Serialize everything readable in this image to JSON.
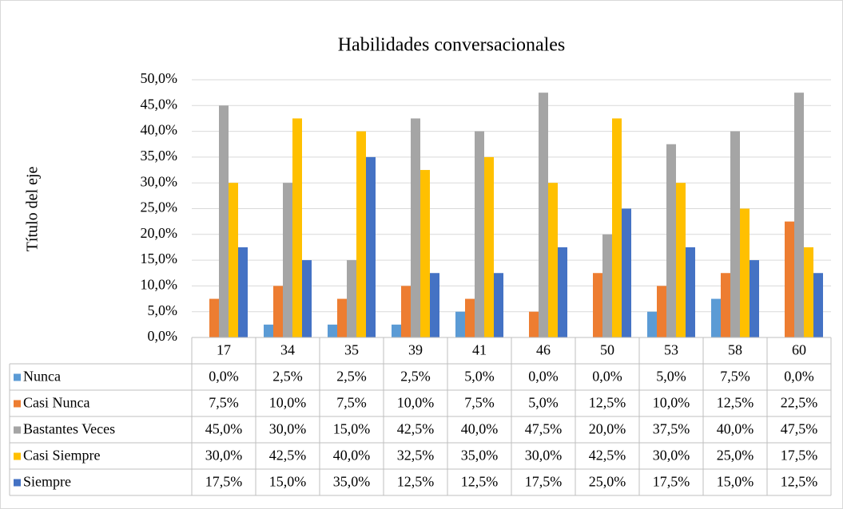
{
  "chart_data": {
    "type": "bar",
    "title": "Habilidades conversacionales",
    "y_label": "Título del eje",
    "categories": [
      "17",
      "34",
      "35",
      "39",
      "41",
      "46",
      "50",
      "53",
      "58",
      "60"
    ],
    "ylim": [
      0,
      50
    ],
    "yticks": [
      {
        "value": 0,
        "label": "0,0%"
      },
      {
        "value": 5,
        "label": "5,0%"
      },
      {
        "value": 10,
        "label": "10,0%"
      },
      {
        "value": 15,
        "label": "15,0%"
      },
      {
        "value": 20,
        "label": "20,0%"
      },
      {
        "value": 25,
        "label": "25,0%"
      },
      {
        "value": 30,
        "label": "30,0%"
      },
      {
        "value": 35,
        "label": "35,0%"
      },
      {
        "value": 40,
        "label": "40,0%"
      },
      {
        "value": 45,
        "label": "45,0%"
      },
      {
        "value": 50,
        "label": "50,0%"
      }
    ],
    "grid": true,
    "series": [
      {
        "name": "Nunca",
        "color": "#5b9bd5",
        "values": [
          0,
          2.5,
          2.5,
          2.5,
          5,
          0,
          0,
          5,
          7.5,
          0
        ],
        "value_labels": [
          "0,0%",
          "2,5%",
          "2,5%",
          "2,5%",
          "5,0%",
          "0,0%",
          "0,0%",
          "5,0%",
          "7,5%",
          "0,0%"
        ]
      },
      {
        "name": "Casi Nunca",
        "color": "#ed7d31",
        "values": [
          7.5,
          10,
          7.5,
          10,
          7.5,
          5,
          12.5,
          10,
          12.5,
          22.5
        ],
        "value_labels": [
          "7,5%",
          "10,0%",
          "7,5%",
          "10,0%",
          "7,5%",
          "5,0%",
          "12,5%",
          "10,0%",
          "12,5%",
          "22,5%"
        ]
      },
      {
        "name": "Bastantes Veces",
        "color": "#a5a5a5",
        "values": [
          45,
          30,
          15,
          42.5,
          40,
          47.5,
          20,
          37.5,
          40,
          47.5
        ],
        "value_labels": [
          "45,0%",
          "30,0%",
          "15,0%",
          "42,5%",
          "40,0%",
          "47,5%",
          "20,0%",
          "37,5%",
          "40,0%",
          "47,5%"
        ]
      },
      {
        "name": "Casi Siempre",
        "color": "#ffc000",
        "values": [
          30,
          42.5,
          40,
          32.5,
          35,
          30,
          42.5,
          30,
          25,
          17.5
        ],
        "value_labels": [
          "30,0%",
          "42,5%",
          "40,0%",
          "32,5%",
          "35,0%",
          "30,0%",
          "42,5%",
          "30,0%",
          "25,0%",
          "17,5%"
        ]
      },
      {
        "name": "Siempre",
        "color": "#4472c4",
        "values": [
          17.5,
          15,
          35,
          12.5,
          12.5,
          17.5,
          25,
          17.5,
          15,
          12.5
        ],
        "value_labels": [
          "17,5%",
          "15,0%",
          "35,0%",
          "12,5%",
          "12,5%",
          "17,5%",
          "25,0%",
          "17,5%",
          "15,0%",
          "12,5%"
        ]
      }
    ]
  }
}
